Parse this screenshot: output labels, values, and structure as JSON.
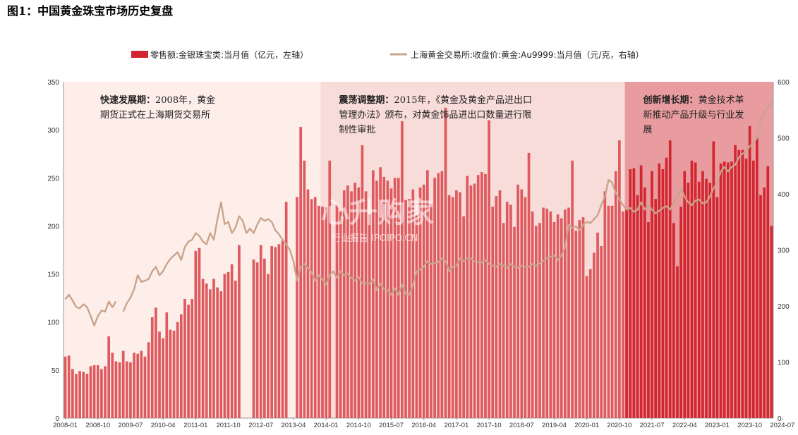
{
  "figure": {
    "title": "图1：中国黄金珠宝市场历史复盘"
  },
  "watermark": {
    "main": "心升购家",
    "sub": "行业报告 IPOIPO.CN"
  },
  "colors": {
    "bar": "#d22630",
    "bar_light": "#de5a5f",
    "line": "#c9a48c",
    "period1": "#fdeeea",
    "period2": "#f8dcd9",
    "period3": "#e89c9f",
    "axis": "#999999"
  },
  "chart_data": {
    "type": "bar+line",
    "legend": {
      "bar_label": "零售额:金银珠宝类:当月值（亿元，左轴）",
      "line_label": "上海黄金交易所:收盘价:黄金:Au9999:当月值（元/克，右轴）",
      "placement": "top-center"
    },
    "y_left": {
      "min": 0,
      "max": 350,
      "ticks": [
        0,
        50,
        100,
        150,
        200,
        250,
        300,
        350
      ]
    },
    "y_right": {
      "min": 0,
      "max": 600,
      "ticks": [
        0,
        100,
        200,
        300,
        400,
        500,
        600
      ]
    },
    "x_tick_labels": [
      "2008-01",
      "2008-10",
      "2009-07",
      "2010-04",
      "2011-01",
      "2011-10",
      "2012-07",
      "2013-04",
      "2014-01",
      "2014-10",
      "2015-07",
      "2016-04",
      "2017-01",
      "2017-10",
      "2018-07",
      "2019-04",
      "2020-01",
      "2020-10",
      "2021-07",
      "2022-04",
      "2023-01",
      "2023-10",
      "2024-07"
    ],
    "start_month": "2008-01",
    "end_month": "2024-07",
    "periods": [
      {
        "title": "快速发展期：",
        "text": [
          "快速发展期：2008年，黄金",
          "期货正式在上海期货交易所"
        ],
        "from": "2008-01",
        "to": "2013-12"
      },
      {
        "title": "震荡调整期：",
        "text": [
          "震荡调整期：2015年，《黄金及黄金产品进出口",
          "管理办法》颁布，对黄金饰品进出口数量进行限",
          "制性审批"
        ],
        "from": "2013-12",
        "to": "2020-12"
      },
      {
        "title": "创新增长期：",
        "text": [
          "创新增长期：黄金技术革",
          "新推动产品升级与行业发",
          "展"
        ],
        "from": "2020-12",
        "to": "2024-07"
      }
    ],
    "retail_sales": [
      64,
      65,
      51,
      46,
      49,
      48,
      46,
      54,
      55,
      55,
      51,
      54,
      85,
      68,
      59,
      58,
      70,
      59,
      58,
      68,
      67,
      70,
      64,
      79,
      105,
      115,
      90,
      83,
      110,
      92,
      91,
      100,
      108,
      124,
      118,
      124,
      174,
      177,
      145,
      140,
      134,
      145,
      136,
      132,
      150,
      152,
      160,
      143,
      180,
      null,
      null,
      null,
      165,
      162,
      180,
      166,
      150,
      179,
      178,
      181,
      185,
      225,
      null,
      null,
      230,
      303,
      268,
      238,
      228,
      230,
      221,
      220,
      219,
      268,
      null,
      222,
      215,
      237,
      242,
      236,
      245,
      240,
      284,
      236,
      212,
      258,
      247,
      261,
      251,
      247,
      239,
      250,
      250,
      309,
      227,
      228,
      238,
      211,
      240,
      243,
      258,
      223,
      250,
      255,
      257,
      323,
      232,
      230,
      237,
      235,
      210,
      252,
      242,
      244,
      253,
      256,
      254,
      310,
      220,
      231,
      237,
      203,
      225,
      222,
      199,
      243,
      238,
      230,
      276,
      215,
      200,
      203,
      219,
      218,
      215,
      204,
      212,
      208,
      217,
      219,
      268,
      195,
      206,
      209,
      148,
      155,
      172,
      193,
      179,
      236,
      221,
      221,
      257,
      289,
      215,
      218,
      259,
      260,
      232,
      263,
      240,
      204,
      257,
      228,
      265,
      259,
      271,
      289,
      203,
      158,
      220,
      257,
      245,
      268,
      266,
      246,
      257,
      249,
      245,
      288,
      230,
      265,
      267,
      266,
      267,
      284,
      279,
      279,
      270,
      304,
      268,
      291,
      232,
      240,
      262,
      200
    ],
    "gold_price": [
      212,
      220,
      210,
      198,
      196,
      203,
      198,
      182,
      165,
      182,
      192,
      190,
      208,
      198,
      208,
      null,
      190,
      205,
      215,
      230,
      255,
      243,
      245,
      248,
      262,
      270,
      255,
      262,
      275,
      284,
      290,
      296,
      282,
      305,
      315,
      318,
      330,
      325,
      315,
      310,
      330,
      318,
      355,
      385,
      346,
      350,
      330,
      340,
      360,
      352,
      330,
      338,
      330,
      345,
      357,
      352,
      355,
      350,
      335,
      328,
      318,
      310,
      300,
      280,
      245,
      270,
      275,
      268,
      260,
      245,
      255,
      248,
      238,
      255,
      262,
      250,
      262,
      255,
      258,
      250,
      245,
      252,
      240,
      240,
      240,
      248,
      228,
      240,
      230,
      228,
      220,
      232,
      220,
      238,
      222,
      220,
      238,
      262,
      265,
      270,
      280,
      275,
      276,
      278,
      285,
      280,
      262,
      270,
      272,
      285,
      280,
      285,
      285,
      280,
      278,
      278,
      282,
      275,
      272,
      270,
      275,
      272,
      268,
      275,
      270,
      268,
      272,
      270,
      270,
      275,
      272,
      276,
      280,
      285,
      288,
      290,
      282,
      290,
      305,
      345,
      340,
      342,
      335,
      345,
      350,
      348,
      355,
      362,
      380,
      395,
      425,
      420,
      402,
      390,
      380,
      372,
      375,
      368,
      372,
      385,
      372,
      380,
      372,
      365,
      370,
      375,
      378,
      372,
      385,
      395,
      410,
      395,
      385,
      380,
      388,
      390,
      383,
      385,
      395,
      410,
      420,
      440,
      448,
      440,
      448,
      452,
      465,
      472,
      475,
      485,
      490,
      500,
      530,
      545,
      555,
      565
    ]
  }
}
